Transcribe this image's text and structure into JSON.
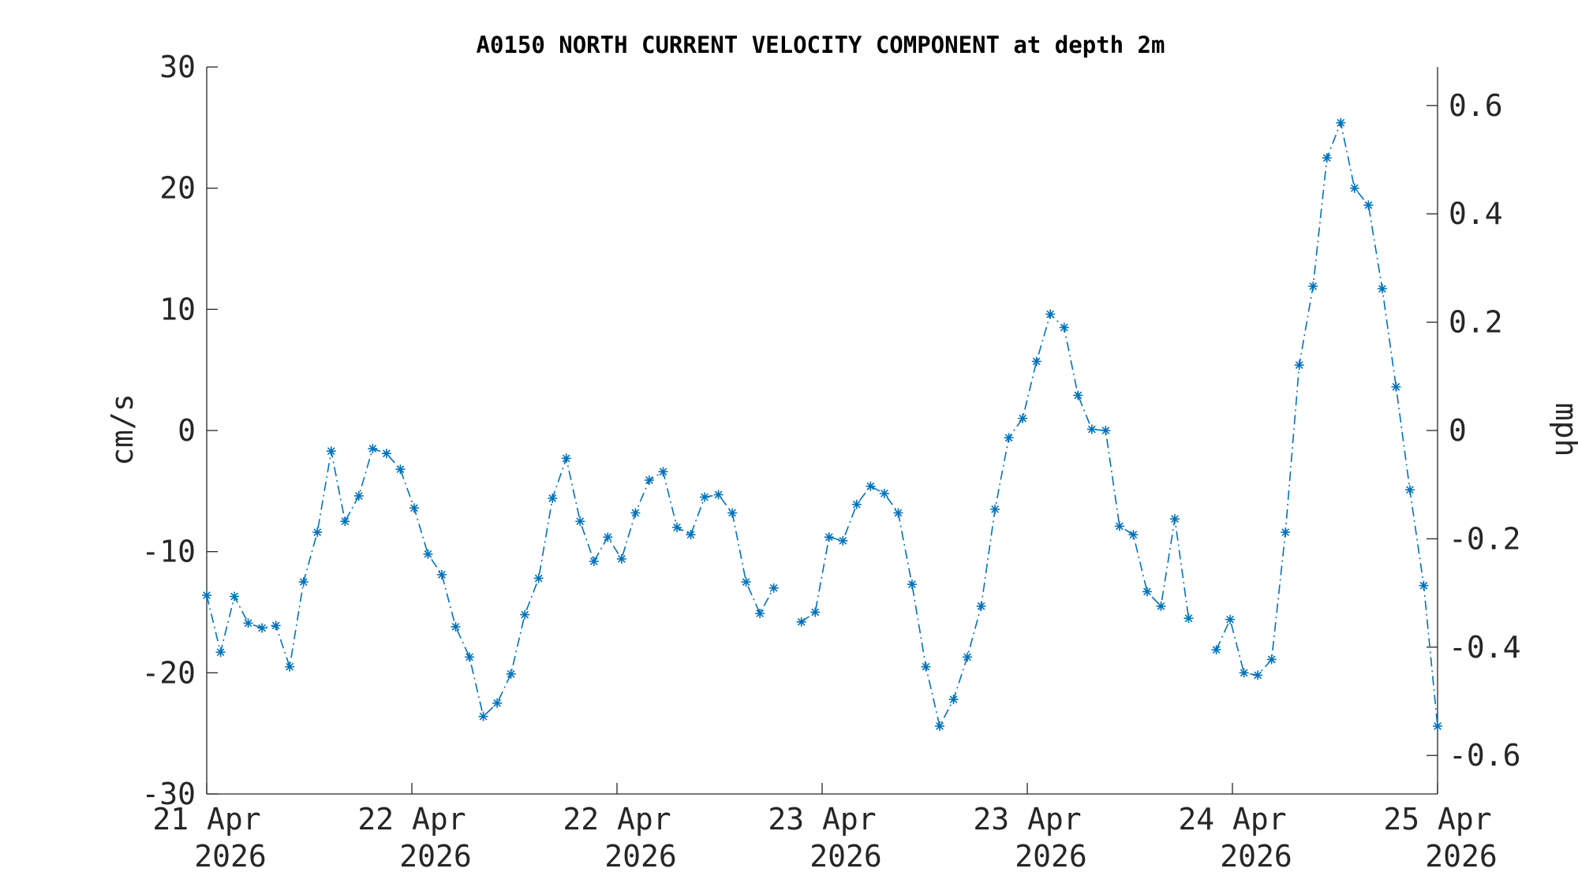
{
  "chart_data": {
    "type": "line",
    "title": "A0150 NORTH CURRENT VELOCITY COMPONENT at depth 2m",
    "ylabel": "cm/s",
    "ylabel_right": "mph",
    "ylim": [
      -30,
      30
    ],
    "yticks": [
      "30",
      "20",
      "10",
      "0",
      "-10",
      "-20",
      "-30"
    ],
    "yticks_right": [
      "0.6",
      "0.4",
      "0.2",
      "0",
      "-0.2",
      "-0.4",
      "-0.6"
    ],
    "yticks_right_values": [
      0.6,
      0.4,
      0.2,
      0,
      -0.2,
      -0.4,
      -0.6
    ],
    "mph_per_cms": 0.0223694,
    "xticks": [
      {
        "day": "21 Apr",
        "year": "2026"
      },
      {
        "day": "22 Apr",
        "year": "2026"
      },
      {
        "day": "22 Apr",
        "year": "2026"
      },
      {
        "day": "23 Apr",
        "year": "2026"
      },
      {
        "day": "23 Apr",
        "year": "2026"
      },
      {
        "day": "24 Apr",
        "year": "2026"
      },
      {
        "day": "25 Apr",
        "year": "2026"
      }
    ],
    "x_interval_hours": 1,
    "color": "#0072BD",
    "marker": "asterisk",
    "line_style": "dash-dot",
    "series": [
      {
        "values": [
          -13.6,
          -18.3,
          -13.7,
          -15.9,
          -16.3,
          -16.1,
          -19.5,
          -12.5,
          -8.4,
          -1.7,
          -7.5,
          -5.4,
          -1.5,
          -1.9,
          -3.2,
          -6.4,
          -10.2,
          -11.9,
          -16.2,
          -18.7,
          -23.6,
          -22.5,
          -20.1,
          -15.2,
          -12.2,
          -5.6,
          -2.3,
          -7.5,
          -10.8,
          -8.8,
          -10.6,
          -6.8,
          -4.1,
          -3.4,
          -8.0,
          -8.6,
          -5.5,
          -5.3,
          -6.8,
          -12.5,
          -15.1,
          -13.0,
          null,
          -15.8,
          -15.0,
          -8.8,
          -9.1,
          -6.1,
          -4.6,
          -5.2,
          -6.8,
          -12.7,
          -19.5,
          -24.4,
          -22.2,
          -18.7,
          -14.5,
          -6.5,
          -0.6,
          1.0,
          5.7,
          9.6,
          8.5,
          2.9,
          0.1,
          0.0,
          -7.9,
          -8.6,
          -13.3,
          -14.5,
          -7.3,
          -15.5,
          null,
          -18.1,
          -15.6,
          -20.0,
          -20.2,
          -18.9,
          -8.4,
          5.4,
          11.9,
          22.5,
          25.4,
          20.0,
          18.6,
          11.7,
          3.6,
          -4.9,
          -12.8,
          -24.4
        ]
      }
    ]
  }
}
